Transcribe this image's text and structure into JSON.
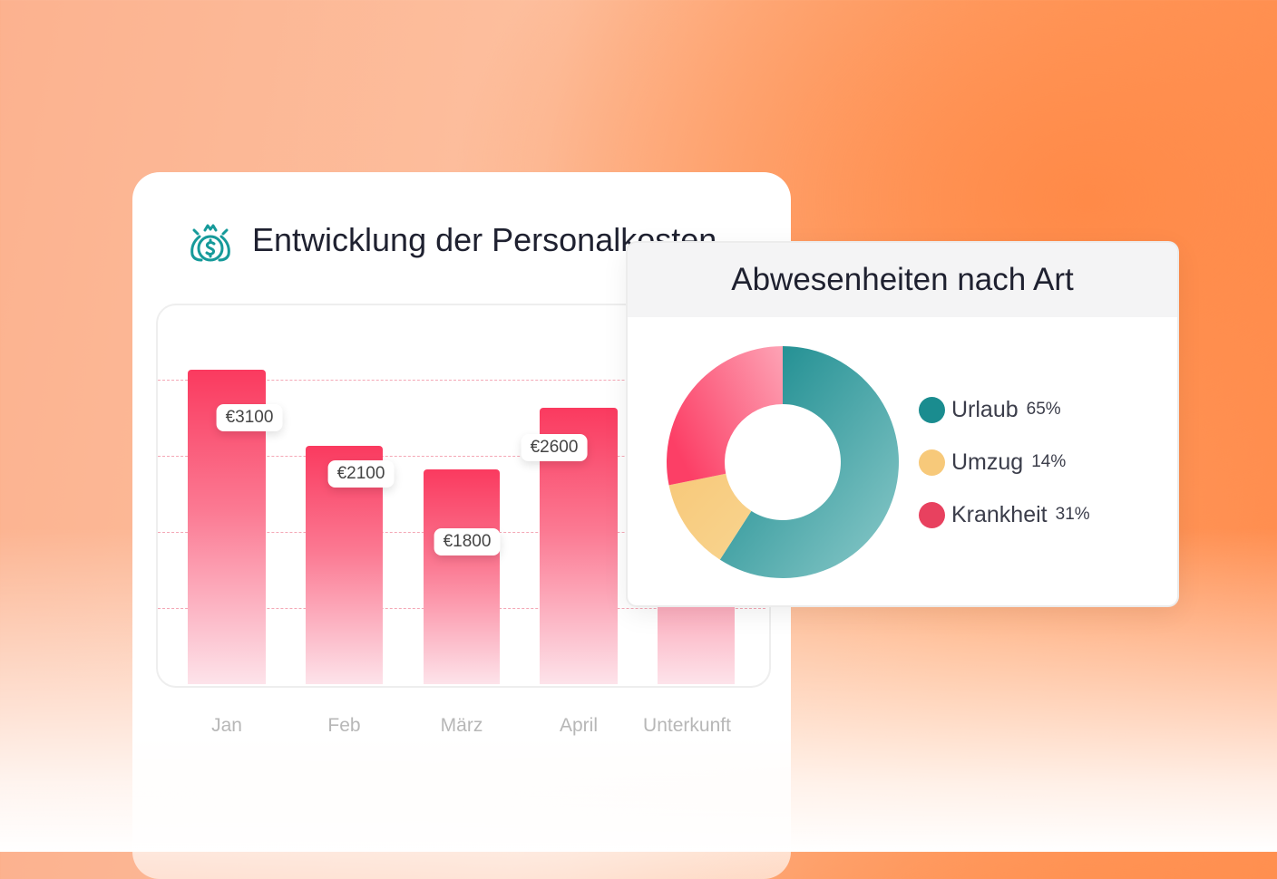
{
  "bar_card": {
    "title": "Entwicklung der Personalkosten",
    "icon": "money-bag-icon"
  },
  "pie_card": {
    "title": "Abwesenheiten nach Art"
  },
  "chart_data": [
    {
      "type": "bar",
      "categories": [
        "Jan",
        "Feb",
        "März",
        "April",
        "Unterkunft"
      ],
      "values": [
        3100,
        2100,
        1800,
        2600,
        null
      ],
      "data_labels": [
        "€3100",
        "€2100",
        "€1800",
        "€2600",
        ""
      ],
      "grid": "horizontal dashed",
      "colors": {
        "bar": "#fa3a5f"
      }
    },
    {
      "type": "pie",
      "donut": true,
      "labels": [
        "Urlaub",
        "Umzug",
        "Krankheit"
      ],
      "values": [
        65,
        14,
        31
      ],
      "value_labels": [
        "65%",
        "14%",
        "31%"
      ],
      "colors": [
        "#1a8c8f",
        "#f7c97a",
        "#e8415f"
      ],
      "legend": "right"
    }
  ]
}
